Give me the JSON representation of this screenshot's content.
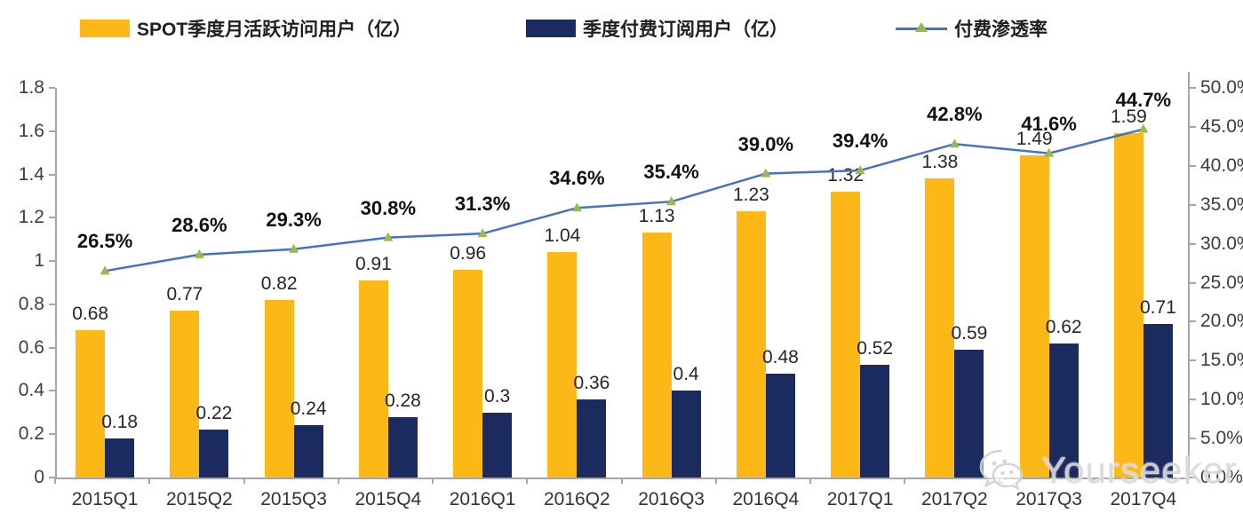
{
  "legend": [
    {
      "label": "SPOT季度月活跃访问用户（亿）",
      "color": "#FBB816",
      "type": "bar"
    },
    {
      "label": "季度付费订阅用户（亿）",
      "color": "#1C2B5F",
      "type": "bar"
    },
    {
      "label": "付费渗透率",
      "color": "#4472C4",
      "marker_color": "#9CB84C",
      "type": "line"
    }
  ],
  "watermark": {
    "text": "Yourseeker",
    "icon": "wechat-icon"
  },
  "chart_data": {
    "type": "bar",
    "subtype": "grouped bars with secondary-axis line",
    "categories": [
      "2015Q1",
      "2015Q2",
      "2015Q3",
      "2015Q4",
      "2016Q1",
      "2016Q2",
      "2016Q3",
      "2016Q4",
      "2017Q1",
      "2017Q2",
      "2017Q3",
      "2017Q4"
    ],
    "series": [
      {
        "name": "SPOT季度月活跃访问用户（亿）",
        "type": "bar",
        "axis": "left",
        "color": "#FBB816",
        "values": [
          0.68,
          0.77,
          0.82,
          0.91,
          0.96,
          1.04,
          1.13,
          1.23,
          1.32,
          1.38,
          1.49,
          1.59
        ],
        "labels": [
          "0.68",
          "0.77",
          "0.82",
          "0.91",
          "0.96",
          "1.04",
          "1.13",
          "1.23",
          "1.32",
          "1.38",
          "1.49",
          "1.59"
        ]
      },
      {
        "name": "季度付费订阅用户（亿）",
        "type": "bar",
        "axis": "left",
        "color": "#1C2B5F",
        "values": [
          0.18,
          0.22,
          0.24,
          0.28,
          0.3,
          0.36,
          0.4,
          0.48,
          0.52,
          0.59,
          0.62,
          0.71
        ],
        "labels": [
          "0.18",
          "0.22",
          "0.24",
          "0.28",
          "0.3",
          "0.36",
          "0.4",
          "0.48",
          "0.52",
          "0.59",
          "0.62",
          "0.71"
        ]
      },
      {
        "name": "付费渗透率",
        "type": "line",
        "axis": "right",
        "color": "#4472C4",
        "marker": "triangle",
        "marker_color": "#9CB84C",
        "values": [
          26.5,
          28.6,
          29.3,
          30.8,
          31.3,
          34.6,
          35.4,
          39.0,
          39.4,
          42.8,
          41.6,
          44.7
        ],
        "labels": [
          "26.5%",
          "28.6%",
          "29.3%",
          "30.8%",
          "31.3%",
          "34.6%",
          "35.4%",
          "39.0%",
          "39.4%",
          "42.8%",
          "41.6%",
          "44.7%"
        ]
      }
    ],
    "left_axis": {
      "min": 0,
      "max": 1.8,
      "step": 0.2,
      "ticks": [
        "0",
        "0.2",
        "0.4",
        "0.6",
        "0.8",
        "1",
        "1.2",
        "1.4",
        "1.6",
        "1.8"
      ]
    },
    "right_axis": {
      "min": 0,
      "max": 50,
      "step": 5,
      "ticks": [
        "0.0%",
        "5.0%",
        "10.0%",
        "15.0%",
        "20.0%",
        "25.0%",
        "30.0%",
        "35.0%",
        "40.0%",
        "45.0%",
        "50.0%"
      ]
    },
    "grid": false,
    "legend_position": "top",
    "title": ""
  }
}
